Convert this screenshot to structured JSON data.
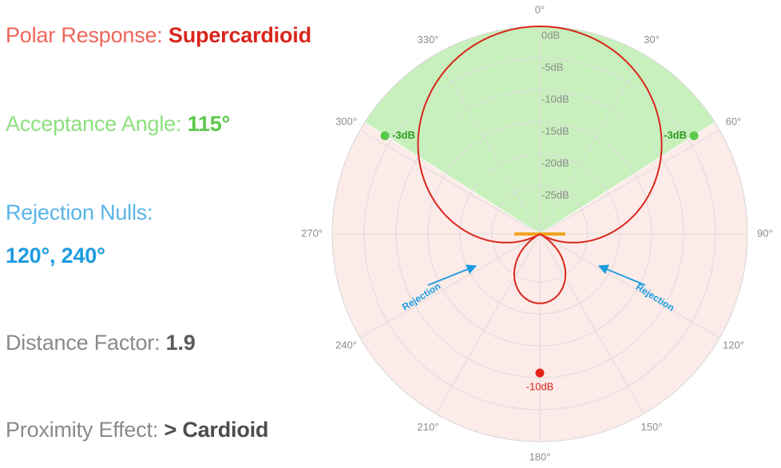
{
  "info": {
    "polar_label": "Polar Response: ",
    "polar_value": "Supercardioid",
    "accept_label": "Acceptance Angle: ",
    "accept_value": "115°",
    "rejection_label": "Rejection Nulls:",
    "rejection_value": "120°, 240°",
    "distance_label": "Distance Factor: ",
    "distance_value": "1.9",
    "proximity_label": "Proximity Effect: ",
    "proximity_value": "> Cardioid"
  },
  "chart": {
    "angle_labels": [
      "0°",
      "30°",
      "60°",
      "90°",
      "120°",
      "150°",
      "180°",
      "210°",
      "240°",
      "270°",
      "300°",
      "330°"
    ],
    "ring_labels": [
      "0dB",
      "-5dB",
      "-10dB",
      "-15dB",
      "-20dB",
      "-25dB"
    ],
    "marker_label": "-3dB",
    "null_label": "-10dB",
    "rejection_text": "Rejection",
    "colors": {
      "pattern": "#d9261c",
      "acceptance_fill": "#c8f0bd",
      "rejection_fill": "#fcebe8",
      "marker": "#5cc94b",
      "null_marker": "#e6221b",
      "rejection_arrow": "#1d9be0",
      "capsule": "#f0a41e"
    }
  },
  "chart_data": {
    "type": "polar",
    "pattern": "Supercardioid",
    "radial_unit": "dB",
    "radial_ticks": [
      0,
      -5,
      -10,
      -15,
      -20,
      -25
    ],
    "angle_ticks_deg": [
      0,
      30,
      60,
      90,
      120,
      150,
      180,
      210,
      240,
      270,
      300,
      330
    ],
    "acceptance_angle_deg": 115,
    "acceptance_edges_deg": [
      -57.5,
      57.5
    ],
    "acceptance_edge_level_db": -3,
    "null_angles_deg": [
      120,
      240
    ],
    "rear_lobe_level_db": -10
  }
}
